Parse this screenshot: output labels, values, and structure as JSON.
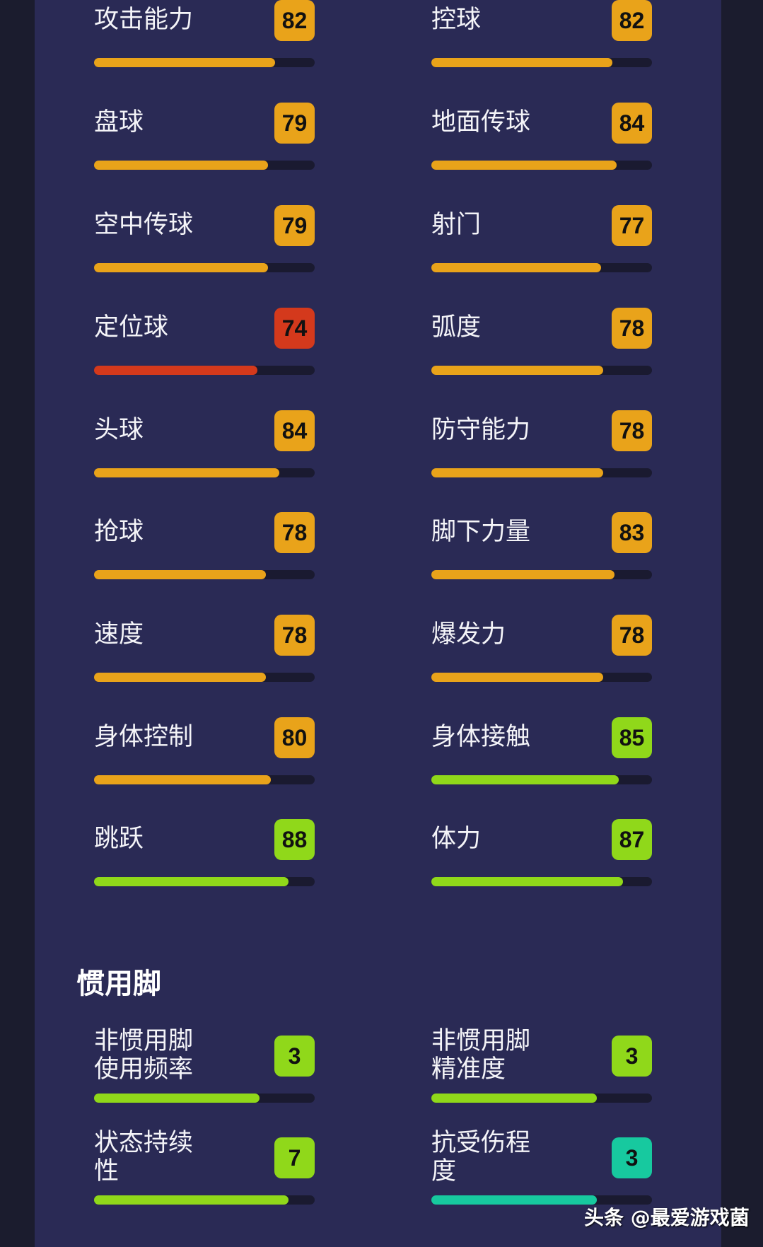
{
  "colors": {
    "orange": "#e9a31a",
    "red": "#d4391c",
    "green": "#90d81a",
    "teal": "#17c99f",
    "panel": "#2a2a55",
    "track": "#1a1a30"
  },
  "stats": [
    {
      "label": "攻击能力",
      "value": "82",
      "fill": 0.82,
      "color": "orange"
    },
    {
      "label": "控球",
      "value": "82",
      "fill": 0.82,
      "color": "orange"
    },
    {
      "label": "盘球",
      "value": "79",
      "fill": 0.79,
      "color": "orange"
    },
    {
      "label": "地面传球",
      "value": "84",
      "fill": 0.84,
      "color": "orange"
    },
    {
      "label": "空中传球",
      "value": "79",
      "fill": 0.79,
      "color": "orange"
    },
    {
      "label": "射门",
      "value": "77",
      "fill": 0.77,
      "color": "orange"
    },
    {
      "label": "定位球",
      "value": "74",
      "fill": 0.74,
      "color": "red"
    },
    {
      "label": "弧度",
      "value": "78",
      "fill": 0.78,
      "color": "orange"
    },
    {
      "label": "头球",
      "value": "84",
      "fill": 0.84,
      "color": "orange"
    },
    {
      "label": "防守能力",
      "value": "78",
      "fill": 0.78,
      "color": "orange"
    },
    {
      "label": "抢球",
      "value": "78",
      "fill": 0.78,
      "color": "orange"
    },
    {
      "label": "脚下力量",
      "value": "83",
      "fill": 0.83,
      "color": "orange"
    },
    {
      "label": "速度",
      "value": "78",
      "fill": 0.78,
      "color": "orange"
    },
    {
      "label": "爆发力",
      "value": "78",
      "fill": 0.78,
      "color": "orange"
    },
    {
      "label": "身体控制",
      "value": "80",
      "fill": 0.8,
      "color": "orange"
    },
    {
      "label": "身体接触",
      "value": "85",
      "fill": 0.85,
      "color": "green"
    },
    {
      "label": "跳跃",
      "value": "88",
      "fill": 0.88,
      "color": "green"
    },
    {
      "label": "体力",
      "value": "87",
      "fill": 0.87,
      "color": "green"
    }
  ],
  "foot_section": {
    "title": "惯用脚"
  },
  "foot_stats": [
    {
      "label": "非惯用脚\n使用频率",
      "value": "3",
      "fill": 0.75,
      "color": "green"
    },
    {
      "label": "非惯用脚\n精准度",
      "value": "3",
      "fill": 0.75,
      "color": "green"
    },
    {
      "label": "状态持续\n性",
      "value": "7",
      "fill": 0.88,
      "color": "green"
    },
    {
      "label": "抗受伤程\n度",
      "value": "3",
      "fill": 0.75,
      "color": "teal"
    }
  ],
  "watermark": "头条 @最爱游戏菌"
}
